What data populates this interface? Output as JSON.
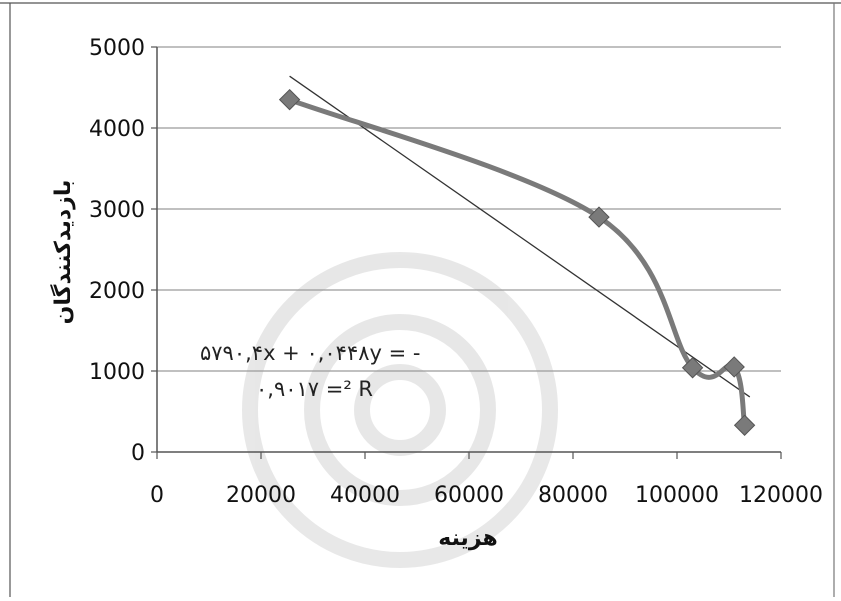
{
  "chart_data": {
    "type": "scatter",
    "xlabel": "هزینه",
    "ylabel": "بازدیدکنندگان",
    "xlim": [
      0,
      120000
    ],
    "ylim": [
      0,
      5000
    ],
    "x_ticks": [
      "0",
      "20000",
      "40000",
      "60000",
      "80000",
      "100000",
      "120000"
    ],
    "y_ticks": [
      "0",
      "1000",
      "2000",
      "3000",
      "4000",
      "5000"
    ],
    "grid": "horizontal",
    "series": [
      {
        "x": [
          25500,
          85000,
          103000,
          111000,
          113000
        ],
        "y": [
          4350,
          2900,
          1040,
          1050,
          330
        ],
        "color": "#7a7a7a",
        "marker": "diamond",
        "line": "smoothed"
      }
    ],
    "trendline": {
      "x": [
        25500,
        114000
      ],
      "y": [
        4640,
        680
      ],
      "color": "#333333"
    },
    "equation": {
      "line1": "۵۷۹۰,۴x + ۰,۰۴۴۸y = -",
      "line2": "۰,۹۰۱۷ =² R"
    }
  }
}
